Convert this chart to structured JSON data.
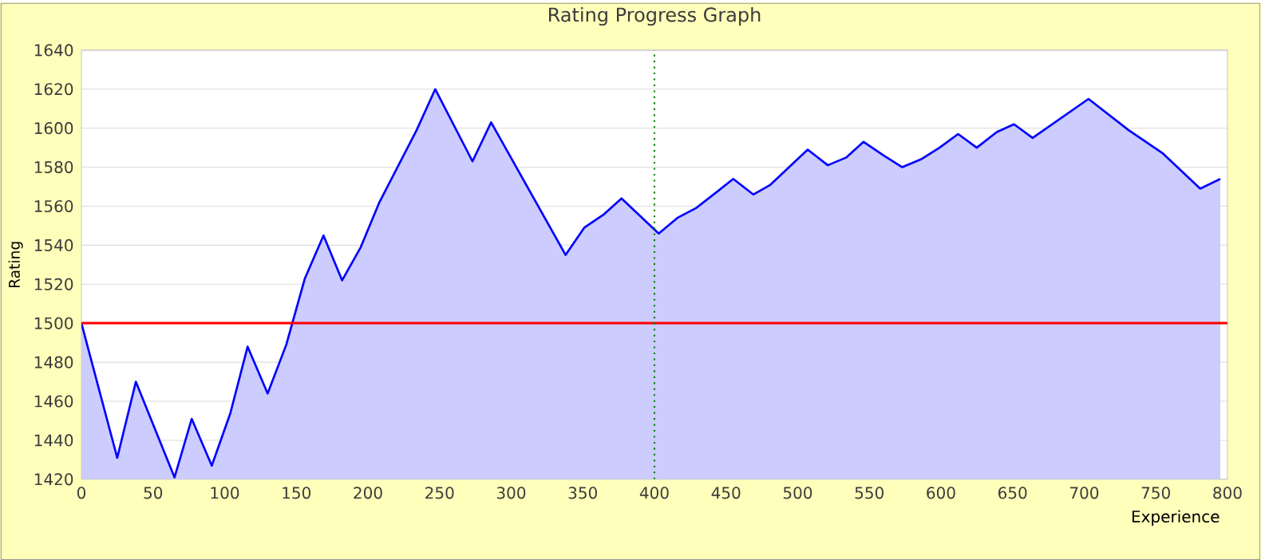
{
  "chart_data": {
    "type": "area",
    "title": "Rating Progress Graph",
    "xlabel": "Experience",
    "ylabel": "Rating",
    "x": [
      0,
      25,
      38,
      65,
      77,
      91,
      104,
      116,
      130,
      143,
      156,
      169,
      182,
      195,
      208,
      234,
      247,
      273,
      286,
      338,
      351,
      365,
      377,
      403,
      416,
      429,
      443,
      455,
      469,
      481,
      507,
      521,
      534,
      546,
      560,
      573,
      586,
      599,
      612,
      625,
      639,
      651,
      664,
      703,
      731,
      755,
      781,
      795
    ],
    "values": [
      1500,
      1431,
      1470,
      1421,
      1451,
      1427,
      1454,
      1488,
      1464,
      1489,
      1523,
      1545,
      1522,
      1539,
      1562,
      1599,
      1620,
      1583,
      1603,
      1535,
      1549,
      1556,
      1564,
      1546,
      1554,
      1559,
      1567,
      1574,
      1566,
      1571,
      1589,
      1581,
      1585,
      1593,
      1586,
      1580,
      1584,
      1590,
      1597,
      1590,
      1598,
      1602,
      1595,
      1615,
      1599,
      1587,
      1569,
      1574
    ],
    "color": "#0000ff",
    "xlim": [
      0,
      800
    ],
    "ylim": [
      1420,
      1640
    ],
    "xticks": [
      0,
      50,
      100,
      150,
      200,
      250,
      300,
      350,
      400,
      450,
      500,
      550,
      600,
      650,
      700,
      750,
      800
    ],
    "yticks": [
      1420,
      1440,
      1460,
      1480,
      1500,
      1520,
      1540,
      1560,
      1580,
      1600,
      1620,
      1640
    ],
    "grid": "y",
    "marker": "none",
    "line_style": "solid",
    "ref_lines": [
      {
        "axis": "y",
        "value": 1500,
        "color": "#ff0000",
        "line_style": "solid"
      },
      {
        "axis": "x",
        "value": 400,
        "color": "#008000",
        "line_style": "dotted"
      }
    ]
  }
}
